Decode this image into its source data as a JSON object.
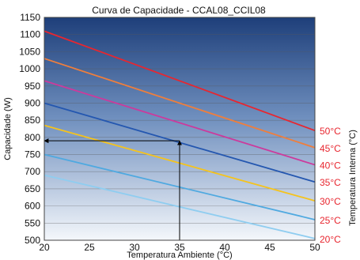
{
  "chart_data": {
    "type": "line",
    "title": "Curva de Capacidade - CCAL08_CCIL08",
    "xlabel": "Temperatura Ambiente (°C)",
    "ylabel": "Capacidade (W)",
    "y2label": "Temperatura Interna (°C)",
    "xlim": [
      20,
      50
    ],
    "ylim": [
      500,
      1150
    ],
    "x_ticks": [
      20,
      25,
      30,
      35,
      40,
      45,
      50
    ],
    "y_ticks": [
      500,
      550,
      600,
      650,
      700,
      750,
      800,
      850,
      900,
      950,
      1000,
      1050,
      1100,
      1150
    ],
    "grid": true,
    "background": "gradient white-to-dark-blue",
    "legend_position": "right",
    "series": [
      {
        "name": "50°C",
        "color": "#e8262f",
        "x": [
          20,
          50
        ],
        "y": [
          1110,
          820
        ]
      },
      {
        "name": "45°C",
        "color": "#ef7e3c",
        "x": [
          20,
          50
        ],
        "y": [
          1030,
          770
        ]
      },
      {
        "name": "40°C",
        "color": "#cc3a9c",
        "x": [
          20,
          50
        ],
        "y": [
          965,
          720
        ]
      },
      {
        "name": "35°C",
        "color": "#2457b0",
        "x": [
          20,
          50
        ],
        "y": [
          900,
          670
        ]
      },
      {
        "name": "30°C",
        "color": "#f5c31c",
        "x": [
          20,
          50
        ],
        "y": [
          835,
          615
        ]
      },
      {
        "name": "25°C",
        "color": "#4fa9e0",
        "x": [
          20,
          50
        ],
        "y": [
          750,
          560
        ]
      },
      {
        "name": "20°C",
        "color": "#8fcdf0",
        "x": [
          20,
          50
        ],
        "y": [
          690,
          505
        ]
      }
    ],
    "annotation": {
      "x": 35,
      "y": 790
    }
  }
}
